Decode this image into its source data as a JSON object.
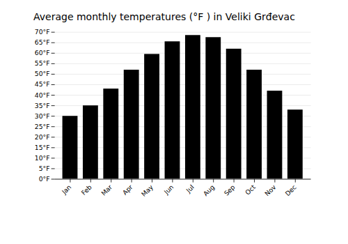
{
  "chart_data": {
    "type": "bar",
    "title": "Average monthly temperatures (°F ) in Veliki Grđevac",
    "categories": [
      "Jan",
      "Feb",
      "Mar",
      "Apr",
      "May",
      "Jun",
      "Jul",
      "Aug",
      "Sep",
      "Oct",
      "Nov",
      "Dec"
    ],
    "values": [
      30,
      35,
      43,
      52,
      59.5,
      65.5,
      68.5,
      67.5,
      62,
      52,
      42,
      33
    ],
    "ylim": [
      0,
      70
    ],
    "yticks": [
      {
        "value": 0,
        "label": "0°F"
      },
      {
        "value": 5,
        "label": "5°F"
      },
      {
        "value": 10,
        "label": "10°F"
      },
      {
        "value": 15,
        "label": "15°F"
      },
      {
        "value": 20,
        "label": "20°F"
      },
      {
        "value": 25,
        "label": "25°F"
      },
      {
        "value": 30,
        "label": "30°F"
      },
      {
        "value": 35,
        "label": "35°F"
      },
      {
        "value": 40,
        "label": "40°F"
      },
      {
        "value": 45,
        "label": "45°F"
      },
      {
        "value": 50,
        "label": "50°F"
      },
      {
        "value": 55,
        "label": "55°F"
      },
      {
        "value": 60,
        "label": "60°F"
      },
      {
        "value": 65,
        "label": "65°F"
      },
      {
        "value": 70,
        "label": "70°F"
      }
    ],
    "grid": true
  }
}
